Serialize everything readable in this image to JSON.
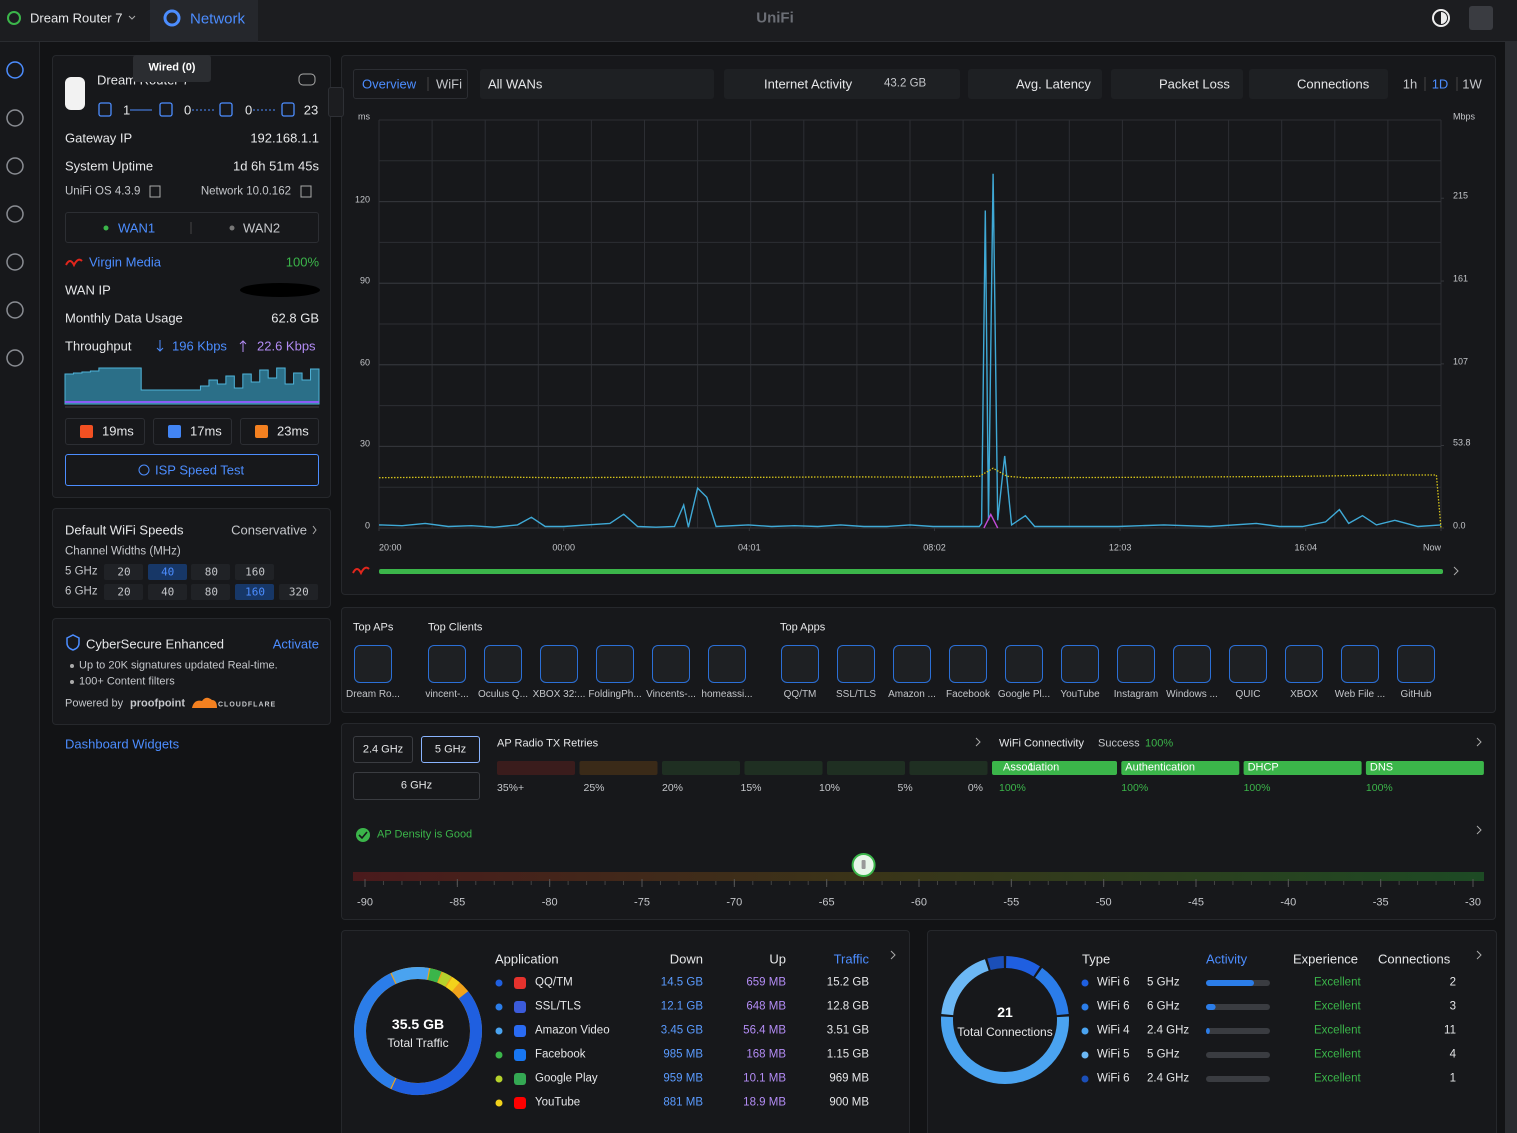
{
  "topbar": {
    "device": "Dream Router 7",
    "app": "Network",
    "brand": "UniFi"
  },
  "device": {
    "name": "Dream Router 7",
    "tooltip": "Wired (0)",
    "ports": [
      1,
      0,
      0,
      23
    ],
    "info": [
      {
        "label": "Gateway IP",
        "value": "192.168.1.1"
      },
      {
        "label": "System Uptime",
        "value": "1d 6h 51m 45s"
      }
    ],
    "os": "UniFi OS 4.3.9",
    "network": "Network 10.0.162",
    "wans": [
      "WAN1",
      "WAN2"
    ],
    "isp": "Virgin Media",
    "isp_uptime": "100%",
    "wan_ip_label": "WAN IP",
    "usage_label": "Monthly Data Usage",
    "usage": "62.8 GB",
    "throughput_label": "Throughput",
    "down": "196 Kbps",
    "up": "22.6 Kbps",
    "throughput_history": [
      30,
      31,
      32,
      33,
      36,
      36,
      36,
      36,
      36,
      14,
      14,
      14,
      14,
      14,
      14,
      14,
      18,
      24,
      20,
      28,
      16,
      30,
      22,
      34,
      26,
      36,
      20,
      31,
      24,
      35
    ],
    "latencies": [
      "19ms",
      "17ms",
      "23ms"
    ],
    "speed_test": "ISP Speed Test"
  },
  "wifi_speeds": {
    "title": "Default WiFi Speeds",
    "profile": "Conservative",
    "subtitle": "Channel Widths (MHz)",
    "bands": [
      {
        "band": "5 GHz",
        "widths": [
          20,
          40,
          80,
          160
        ],
        "selected": 40
      },
      {
        "band": "6 GHz",
        "widths": [
          20,
          40,
          80,
          160,
          320
        ],
        "selected": 160
      }
    ]
  },
  "cybersecure": {
    "title": "CyberSecure Enhanced",
    "action": "Activate",
    "features": [
      "Up to 20K signatures updated Real-time.",
      "100+ Content filters"
    ],
    "powered_by": "Powered by",
    "partners": [
      "proofpoint",
      "CLOUDFLARE"
    ]
  },
  "dashboard_link": "Dashboard Widgets",
  "activity_chart": {
    "views": [
      "Overview",
      "WiFi"
    ],
    "wan_filter": "All WANs",
    "metric": "Internet Activity",
    "total": "43.2 GB",
    "toggles": [
      {
        "label": "Avg. Latency",
        "checked": true,
        "color": "#d4c21a"
      },
      {
        "label": "Packet Loss",
        "checked": true,
        "color": "#c04ad8"
      },
      {
        "label": "Connections",
        "checked": false,
        "color": "#e8e8e8"
      }
    ],
    "ranges": [
      "1h",
      "1D",
      "1W"
    ],
    "active_range": "1D",
    "y_unit": "ms",
    "y2_unit": "Mbps",
    "ylim": [
      0,
      150
    ],
    "yticks": [
      0,
      30,
      60,
      90,
      120
    ],
    "y2lim": [
      0,
      266
    ],
    "y2ticks": [
      {
        "value": 0,
        "label": "0.0"
      },
      53.8,
      107,
      161,
      215
    ],
    "xlim": [
      0,
      23
    ],
    "xticks": [
      {
        "value": 0,
        "label": "20:00"
      },
      {
        "value": 4,
        "label": "00:00"
      },
      {
        "value": 8.02,
        "label": "04:01"
      },
      {
        "value": 12.03,
        "label": "08:02"
      },
      {
        "value": 16.05,
        "label": "12:03"
      },
      {
        "value": 20.07,
        "label": "16:04"
      },
      {
        "value": 23,
        "label": "Now"
      }
    ],
    "grid": true,
    "series": [
      {
        "axis": "y2",
        "color": "#3fa9d6",
        "style": "solid",
        "x": [
          0,
          0.5,
          1,
          1.5,
          2,
          2.5,
          3,
          3.3,
          3.6,
          4,
          4.5,
          5,
          5.3,
          5.6,
          6,
          6.4,
          6.6,
          6.7,
          6.9,
          7.1,
          7.3,
          8,
          8.5,
          9,
          9.5,
          10,
          10.5,
          11,
          11.5,
          12,
          12.5,
          13,
          13.05,
          13.13,
          13.2,
          13.3,
          13.4,
          13.55,
          13.7,
          14,
          14.2,
          15,
          16,
          17,
          18,
          19,
          19.5,
          20,
          20.5,
          20.8,
          21,
          21.3,
          21.6,
          22,
          22.5,
          23
        ],
        "values": [
          2,
          1.5,
          3,
          1,
          1.5,
          0.5,
          2,
          7,
          1,
          1,
          2,
          3,
          9,
          1,
          0.5,
          1,
          15,
          0.5,
          26,
          20,
          1,
          2,
          1,
          1.5,
          1,
          2,
          1,
          1,
          2,
          1,
          1,
          1,
          3,
          207,
          5,
          231,
          5,
          47,
          2,
          8,
          1,
          1,
          1,
          2,
          1,
          3,
          1,
          1,
          4,
          12,
          3,
          8,
          2,
          5,
          1,
          2
        ]
      },
      {
        "axis": "y",
        "color": "#d4c21a",
        "style": "dotted",
        "x": [
          0,
          2,
          4,
          6,
          8,
          10,
          12,
          13,
          13.3,
          13.6,
          14,
          16,
          18,
          20,
          22,
          22.9,
          23
        ],
        "values": [
          18.5,
          18.8,
          18.5,
          18.7,
          18.6,
          18.8,
          18.7,
          19,
          22,
          19,
          18.5,
          18.6,
          18.8,
          19,
          19.5,
          19.5,
          0
        ]
      },
      {
        "axis": "y",
        "color": "#c04ad8",
        "style": "solid",
        "x": [
          13.1,
          13.25,
          13.4
        ],
        "values": [
          0,
          5,
          0
        ]
      }
    ]
  },
  "top_items": {
    "sections": [
      {
        "title": "Top APs",
        "items": [
          {
            "label": "Dream Ro...",
            "color": "#e8e8e8"
          }
        ]
      },
      {
        "title": "Top Clients",
        "items": [
          {
            "label": "vincent-...",
            "color": "#cfd3d8"
          },
          {
            "label": "Oculus Q...",
            "color": "#cfd3d8"
          },
          {
            "label": "XBOX 32:...",
            "color": "#cfd3d8"
          },
          {
            "label": "FoldingPh...",
            "color": "#8b5cf6"
          },
          {
            "label": "Vincents-...",
            "color": "#cfd3d8"
          },
          {
            "label": "homeassi...",
            "color": "#41bdf5"
          }
        ]
      },
      {
        "title": "Top Apps",
        "items": [
          {
            "label": "QQ/TM",
            "color": "#e5322d"
          },
          {
            "label": "SSL/TLS",
            "color": "#3b5bdb"
          },
          {
            "label": "Amazon ...",
            "color": "#2a6bf2"
          },
          {
            "label": "Facebook",
            "color": "#1877f2"
          },
          {
            "label": "Google Pl...",
            "color": "#34a853"
          },
          {
            "label": "YouTube",
            "color": "#ff0000"
          },
          {
            "label": "Instagram",
            "color": "#e1306c"
          },
          {
            "label": "Windows ...",
            "color": "#2eaa4e"
          },
          {
            "label": "QUIC",
            "color": "#2aa4d6"
          },
          {
            "label": "XBOX",
            "color": "#107c10"
          },
          {
            "label": "Web File ...",
            "color": "#9aa0a6"
          },
          {
            "label": "GitHub",
            "color": "#e8e8e8"
          }
        ]
      }
    ]
  },
  "radio": {
    "bands": [
      "2.4 GHz",
      "5 GHz",
      "6 GHz"
    ],
    "selected_band": "5 GHz",
    "retries_title": "AP Radio TX Retries",
    "retry_buckets": [
      0,
      0,
      0,
      0,
      0,
      0,
      1
    ],
    "bucket_colors": [
      "#3a1c1c",
      "#3a2a18",
      "#1f2f22",
      "#1f2f22",
      "#1f2f22",
      "#1f2f22",
      "#3bb54a"
    ],
    "retry_scale": [
      "35%+",
      "25%",
      "20%",
      "15%",
      "10%",
      "5%",
      "0%"
    ],
    "connectivity_title": "WiFi Connectivity",
    "success_label": "Success",
    "success": "100%",
    "stages": [
      {
        "name": "Association",
        "rate": "100%"
      },
      {
        "name": "Authentication",
        "rate": "100%"
      },
      {
        "name": "DHCP",
        "rate": "100%"
      },
      {
        "name": "DNS",
        "rate": "100%"
      }
    ]
  },
  "density": {
    "status": "AP Density is Good",
    "ticks": [
      -90,
      -85,
      -80,
      -75,
      -70,
      -65,
      -60,
      -55,
      -50,
      -45,
      -40,
      -35,
      -30
    ],
    "value": -63
  },
  "traffic": {
    "total": "35.5 GB",
    "total_gb": 35.5,
    "total_label": "Total Traffic",
    "headers": [
      "Application",
      "Down",
      "Up",
      "Traffic"
    ],
    "rows": [
      {
        "app": "QQ/TM",
        "down": "14.5 GB",
        "up": "659 MB",
        "traffic": "15.2 GB",
        "traffic_gb": 15.2,
        "color": "#1f5fe0"
      },
      {
        "app": "SSL/TLS",
        "down": "12.1 GB",
        "up": "648 MB",
        "traffic": "12.8 GB",
        "traffic_gb": 12.8,
        "color": "#2b7de9"
      },
      {
        "app": "Amazon Video",
        "down": "3.45 GB",
        "up": "56.4 MB",
        "traffic": "3.51 GB",
        "traffic_gb": 3.51,
        "color": "#4aa3f0"
      },
      {
        "app": "Facebook",
        "down": "985 MB",
        "up": "168 MB",
        "traffic": "1.15 GB",
        "traffic_gb": 1.15,
        "color": "#3bb54a"
      },
      {
        "app": "Google Play",
        "down": "959 MB",
        "up": "10.1 MB",
        "traffic": "969 MB",
        "traffic_gb": 0.969,
        "color": "#b5d22c"
      },
      {
        "app": "YouTube",
        "down": "881 MB",
        "up": "18.9 MB",
        "traffic": "900 MB",
        "traffic_gb": 0.9,
        "color": "#f2d21b"
      }
    ]
  },
  "connections": {
    "total": 21,
    "total_label": "Total Connections",
    "headers": [
      "Type",
      "Activity",
      "Experience",
      "Connections"
    ],
    "rows": [
      {
        "type": "WiFi 6",
        "band": "5 GHz",
        "activity": 75,
        "experience": "Excellent",
        "connections": 2,
        "color": "#1f5fe0"
      },
      {
        "type": "WiFi 6",
        "band": "6 GHz",
        "activity": 15,
        "experience": "Excellent",
        "connections": 3,
        "color": "#2b7de9"
      },
      {
        "type": "WiFi 4",
        "band": "2.4 GHz",
        "activity": 6,
        "experience": "Excellent",
        "connections": 11,
        "color": "#4aa3f0"
      },
      {
        "type": "WiFi 5",
        "band": "5 GHz",
        "activity": 0,
        "experience": "Excellent",
        "connections": 4,
        "color": "#6cb8f5"
      },
      {
        "type": "WiFi 6",
        "band": "2.4 GHz",
        "activity": 0,
        "experience": "Excellent",
        "connections": 1,
        "color": "#1b4fb8"
      }
    ]
  }
}
